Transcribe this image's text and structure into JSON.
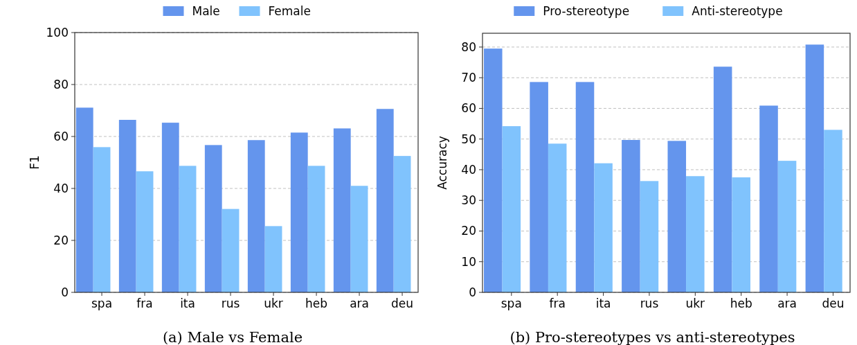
{
  "chart_data": [
    {
      "type": "bar",
      "ylabel": "F1",
      "categories": [
        "spa",
        "fra",
        "ita",
        "rus",
        "ukr",
        "heb",
        "ara",
        "deu"
      ],
      "series": [
        {
          "name": "Male",
          "color": "#6495ed",
          "values": [
            71.1,
            66.4,
            65.3,
            56.7,
            58.6,
            61.5,
            63.1,
            70.6
          ]
        },
        {
          "name": "Female",
          "color": "#80c3fd",
          "values": [
            55.9,
            46.6,
            48.7,
            32.1,
            25.5,
            48.7,
            41.0,
            52.5
          ]
        }
      ],
      "ylim": [
        0,
        100
      ],
      "yticks": [
        0,
        20,
        40,
        60,
        80,
        100
      ],
      "grid": "y",
      "legend": "top",
      "annotations": [
        "(a) Male vs Female"
      ]
    },
    {
      "type": "bar",
      "ylabel": "Accuracy",
      "categories": [
        "spa",
        "fra",
        "ita",
        "rus",
        "ukr",
        "heb",
        "ara",
        "deu"
      ],
      "series": [
        {
          "name": "Pro-stereotype",
          "color": "#6495ed",
          "values": [
            79.5,
            68.6,
            68.6,
            49.7,
            49.4,
            73.6,
            60.9,
            80.8
          ]
        },
        {
          "name": "Anti-stereotype",
          "color": "#80c3fd",
          "values": [
            54.2,
            48.5,
            42.1,
            36.3,
            37.9,
            37.5,
            42.9,
            53.0
          ]
        }
      ],
      "ylim": [
        0,
        84.5
      ],
      "yticks": [
        0,
        10,
        20,
        30,
        40,
        50,
        60,
        70,
        80
      ],
      "grid": "y",
      "legend": "top",
      "annotations": [
        "(b) Pro-stereotypes vs anti-stereotypes"
      ]
    }
  ]
}
